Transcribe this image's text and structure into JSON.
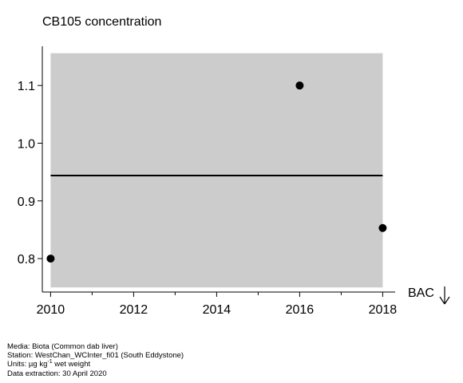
{
  "chart_data": {
    "type": "scatter",
    "title": "CB105 concentration",
    "xlim": [
      2009.8,
      2018.3
    ],
    "ylim": [
      0.742,
      1.168
    ],
    "x_ticks": [
      2010,
      2012,
      2014,
      2016,
      2018
    ],
    "y_ticks": [
      0.8,
      0.9,
      1.0,
      1.1
    ],
    "y_tick_labels": [
      "0.8",
      "0.9",
      "1.0",
      "1.1"
    ],
    "points": [
      {
        "x": 2010,
        "y": 0.8
      },
      {
        "x": 2016,
        "y": 1.1
      },
      {
        "x": 2018,
        "y": 0.853
      }
    ],
    "band": {
      "x": [
        2010,
        2018
      ],
      "y": [
        0.75,
        1.156
      ],
      "color": "#cccccc"
    },
    "trend_line": {
      "x": [
        2010,
        2018
      ],
      "y": [
        0.944,
        0.944
      ]
    },
    "annotation": {
      "label": "BAC",
      "arrow": "down"
    },
    "grid": false
  },
  "footer": {
    "media": "Media: Biota (Common dab liver)",
    "station": "Station: WestChan_WCInter_fi01 (South Eddystone)",
    "units_prefix": "Units:  µg kg",
    "units_sup": "-1",
    "units_suffix": " wet weight",
    "extraction": "Data extraction: 30 April 2020"
  }
}
